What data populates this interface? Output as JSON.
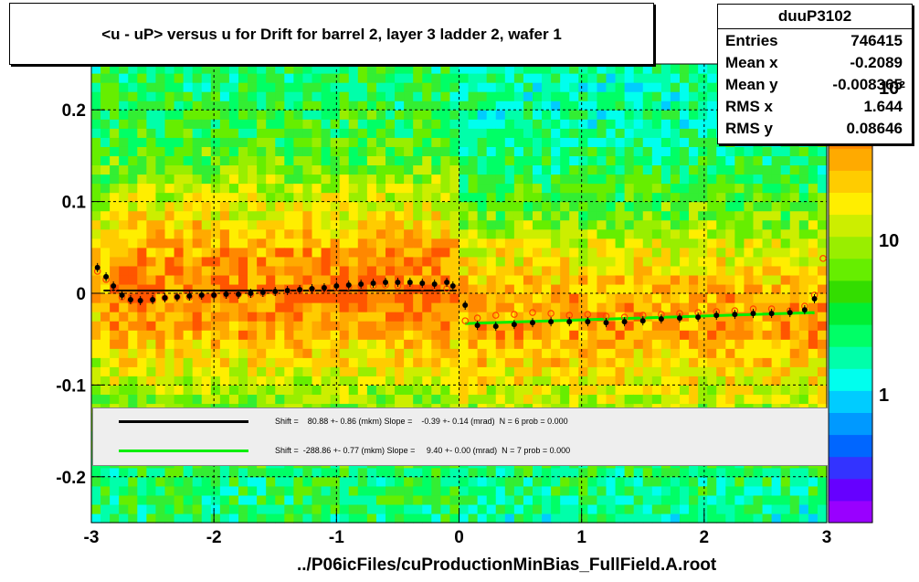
{
  "chart_data": {
    "type": "heatmap",
    "title": "<u - uP>       versus   u for Drift for barrel 2, layer 3 ladder 2, wafer 1",
    "xlabel": "",
    "ylabel": "",
    "xlim": [
      -3,
      3
    ],
    "ylim": [
      -0.25,
      0.25
    ],
    "x_ticks": [
      "-3",
      "-2",
      "-1",
      "0",
      "1",
      "2",
      "3"
    ],
    "y_ticks": [
      "-0.2",
      "-0.1",
      "0",
      "0.1",
      "0.2"
    ],
    "grid": true,
    "colorbar": {
      "scale": "log",
      "tick_labels": [
        "1",
        "10",
        "10²"
      ],
      "colors": [
        "#9900ff",
        "#6600ff",
        "#3333ff",
        "#0066ff",
        "#0099ff",
        "#00ccff",
        "#00ffee",
        "#00ffaa",
        "#00ff66",
        "#00ee33",
        "#33dd00",
        "#66ee00",
        "#99ee00",
        "#ccee00",
        "#ffee00",
        "#ffcc00",
        "#ffaa00",
        "#ff8800",
        "#ff5500",
        "#ff2200"
      ]
    },
    "profile_black": {
      "x": [
        -2.95,
        -2.88,
        -2.82,
        -2.75,
        -2.68,
        -2.6,
        -2.5,
        -2.4,
        -2.3,
        -2.2,
        -2.1,
        -2.0,
        -1.9,
        -1.8,
        -1.7,
        -1.6,
        -1.5,
        -1.4,
        -1.3,
        -1.2,
        -1.1,
        -1.0,
        -0.9,
        -0.8,
        -0.7,
        -0.6,
        -0.5,
        -0.4,
        -0.3,
        -0.2,
        -0.1,
        -0.05,
        0.05,
        0.15,
        0.3,
        0.45,
        0.6,
        0.75,
        0.9,
        1.05,
        1.2,
        1.35,
        1.5,
        1.65,
        1.8,
        1.95,
        2.1,
        2.25,
        2.4,
        2.55,
        2.7,
        2.82,
        2.9
      ],
      "y": [
        0.028,
        0.018,
        0.008,
        -0.002,
        -0.007,
        -0.008,
        -0.007,
        -0.005,
        -0.004,
        -0.003,
        -0.002,
        -0.002,
        -0.001,
        -0.001,
        0.0,
        0.001,
        0.002,
        0.003,
        0.004,
        0.005,
        0.006,
        0.008,
        0.009,
        0.01,
        0.011,
        0.012,
        0.012,
        0.012,
        0.011,
        0.01,
        0.012,
        0.008,
        -0.013,
        -0.035,
        -0.036,
        -0.034,
        -0.032,
        -0.031,
        -0.031,
        -0.031,
        -0.032,
        -0.031,
        -0.03,
        -0.028,
        -0.027,
        -0.026,
        -0.024,
        -0.023,
        -0.022,
        -0.022,
        -0.021,
        -0.018,
        -0.006
      ]
    },
    "profile_red": {
      "x": [
        -2.95,
        -2.88,
        -2.82,
        -2.75,
        -2.68,
        -2.6,
        -2.5,
        -2.4,
        -2.3,
        -2.2,
        -2.1,
        -2.0,
        -1.9,
        -1.8,
        -1.7,
        -1.6,
        -1.5,
        -1.4,
        -1.3,
        -1.2,
        -1.1,
        -1.0,
        -0.9,
        -0.8,
        -0.7,
        -0.6,
        -0.5,
        -0.4,
        -0.3,
        -0.2,
        -0.1,
        0.05,
        0.15,
        0.3,
        0.45,
        0.6,
        0.75,
        0.9,
        1.05,
        1.2,
        1.35,
        1.5,
        1.65,
        1.8,
        1.95,
        2.1,
        2.25,
        2.4,
        2.55,
        2.7,
        2.82,
        2.9,
        2.97
      ],
      "y": [
        0.024,
        0.015,
        0.005,
        -0.004,
        -0.008,
        -0.008,
        -0.007,
        -0.005,
        -0.004,
        -0.004,
        -0.003,
        -0.002,
        -0.002,
        -0.001,
        -0.001,
        0.0,
        0.001,
        0.002,
        0.003,
        0.004,
        0.005,
        0.006,
        0.007,
        0.008,
        0.008,
        0.009,
        0.008,
        0.008,
        0.007,
        0.007,
        0.005,
        -0.03,
        -0.027,
        -0.024,
        -0.023,
        -0.021,
        -0.022,
        -0.024,
        -0.023,
        -0.025,
        -0.026,
        -0.024,
        -0.023,
        -0.022,
        -0.021,
        -0.02,
        -0.019,
        -0.017,
        -0.017,
        -0.019,
        -0.014,
        -0.002,
        0.038
      ]
    },
    "fit_lines": [
      {
        "color": "#000000",
        "text": "Shift =    80.88 +- 0.86 (mkm) Slope =    -0.39 +- 0.14 (mrad)  N = 6 prob = 0.000",
        "x": [
          -3,
          0
        ],
        "y": [
          0.003,
          0.003
        ]
      },
      {
        "color": "#00ee00",
        "text": "Shift =  -288.86 +- 0.77 (mkm) Slope =     9.40 +- 0.00 (mrad)  N = 7 prob = 0.000",
        "x": [
          0,
          3
        ],
        "y": [
          -0.033,
          -0.021
        ]
      }
    ]
  },
  "stats": {
    "name": "duuP3102",
    "entries_label": "Entries",
    "entries": "746415",
    "meanx_label": "Mean x",
    "meanx": "-0.2089",
    "meany_label": "Mean y",
    "meany": "-0.008365",
    "rmsx_label": "RMS x",
    "rmsx": "1.644",
    "rmsy_label": "RMS y",
    "rmsy": "0.08646"
  },
  "footer": "../P06icFiles/cuProductionMinBias_FullField.A.root"
}
